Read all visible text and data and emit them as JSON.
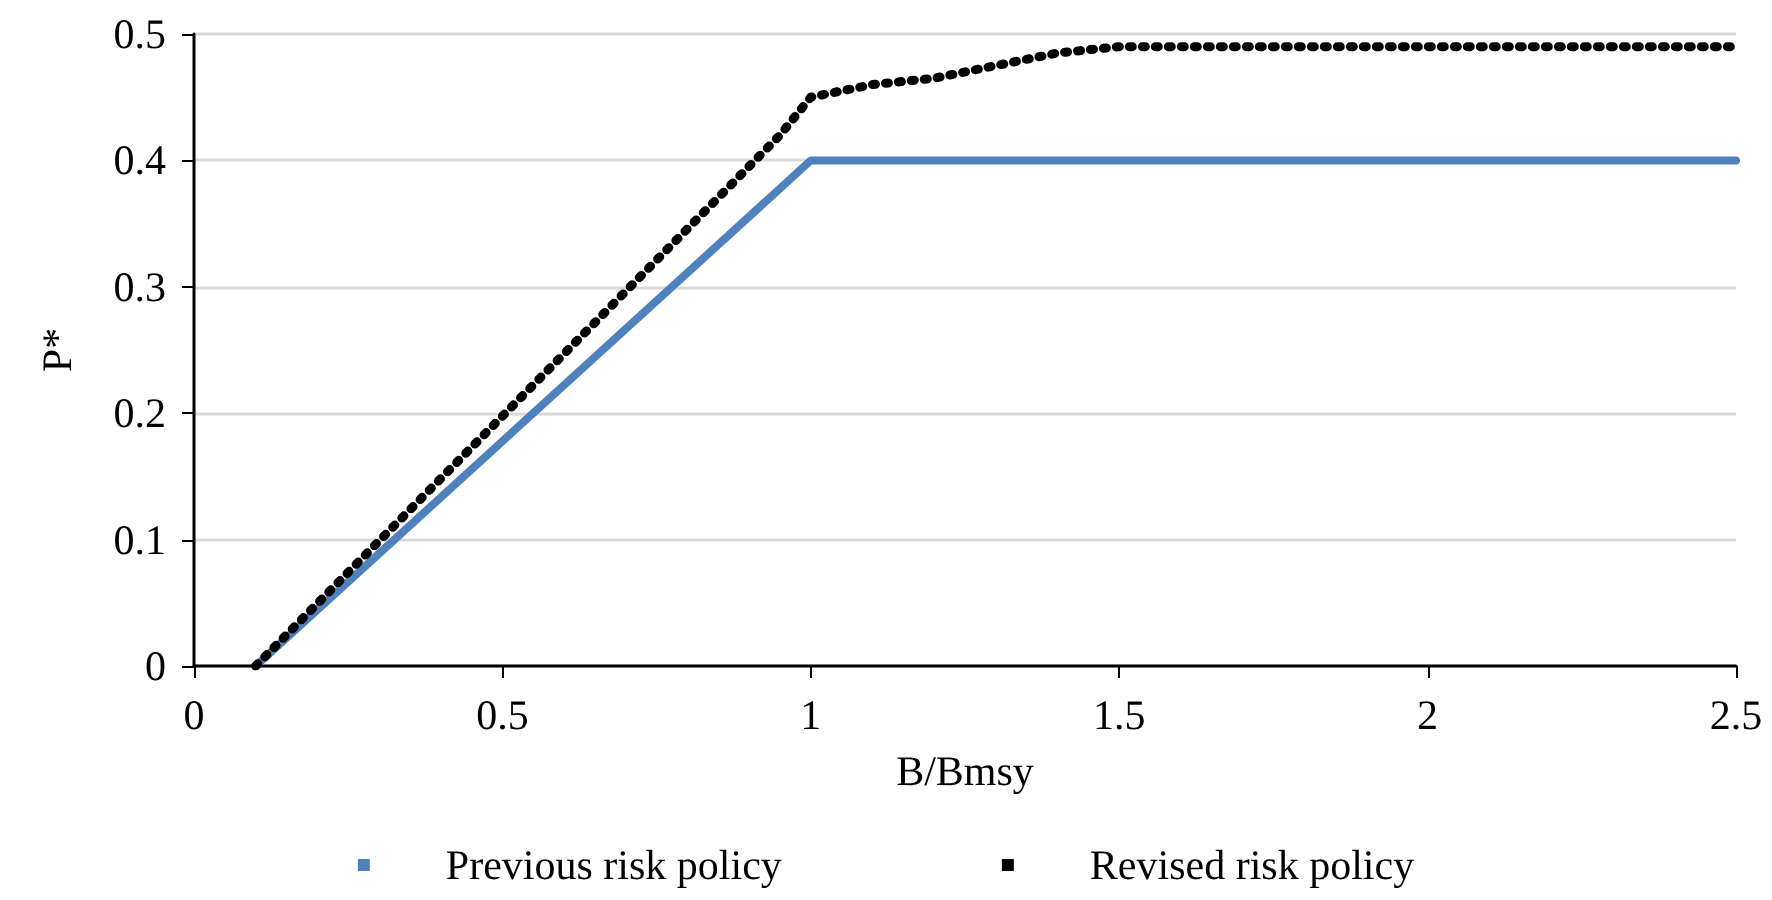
{
  "chart_data": {
    "type": "line",
    "xlabel": "B/Bmsy",
    "ylabel": "P*",
    "xlim": [
      0,
      2.5
    ],
    "xticks": [
      0,
      0.5,
      1,
      1.5,
      2,
      2.5
    ],
    "ylim": [
      0,
      0.5
    ],
    "yticks": [
      0,
      0.1,
      0.2,
      0.3,
      0.4,
      0.5
    ],
    "grid": "y",
    "legend": "bottom",
    "marker": "none",
    "series": [
      {
        "name": "Previous risk policy",
        "color": "#4f81bd",
        "line_style": "solid",
        "x": [
          0.1,
          1,
          2.5
        ],
        "values": [
          0,
          0.4,
          0.4
        ]
      },
      {
        "name": "Revised risk policy",
        "color": "#000000",
        "line_style": "dotted",
        "x": [
          0.1,
          0.95,
          1.0,
          1.1,
          1.2,
          1.3,
          1.4,
          1.5,
          2.5
        ],
        "values": [
          0,
          0.42,
          0.45,
          0.46,
          0.465,
          0.475,
          0.485,
          0.49,
          0.49
        ]
      }
    ]
  }
}
